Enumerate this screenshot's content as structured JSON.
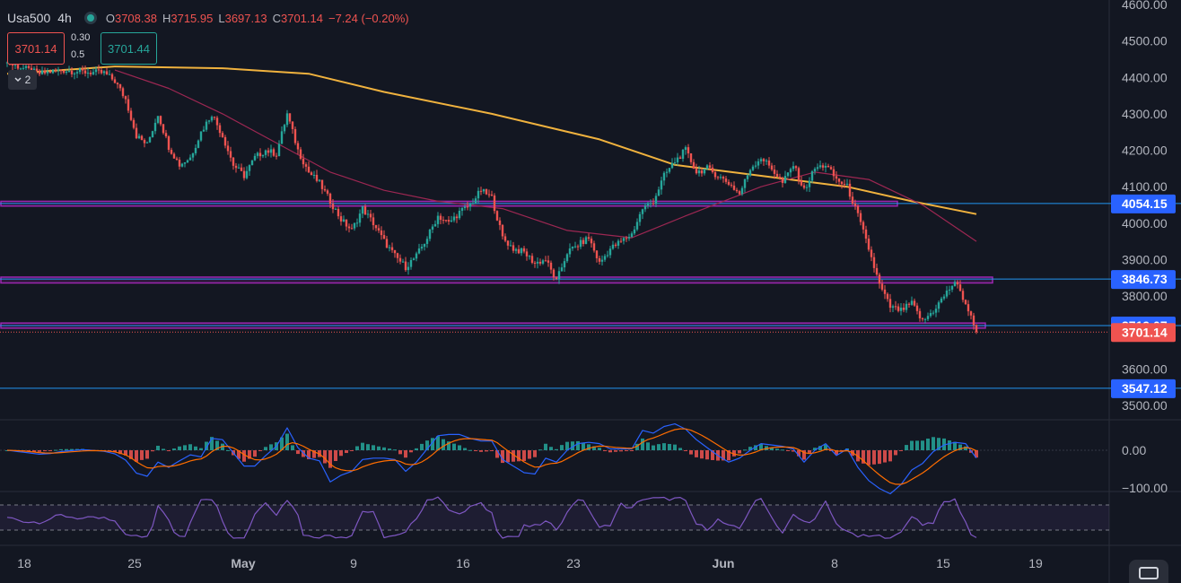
{
  "legend": {
    "symbol": "Usa500",
    "timeframe": "4h",
    "o_key": "O",
    "o_val": "3708.38",
    "h_key": "H",
    "h_val": "3715.95",
    "l_key": "L",
    "l_val": "3697.13",
    "c_key": "C",
    "c_val": "3701.14",
    "change": "−7.24 (−0.20%)"
  },
  "trade_panel": {
    "sell_price": "3701.14",
    "buy_price": "3701.44",
    "spread_top": "0.30",
    "spread_bottom": "0.5",
    "lots_value": "2"
  },
  "colors": {
    "background": "#131722",
    "up": "#26a69a",
    "down": "#ef5350",
    "ma_slow": "#f0b23e",
    "ma_fast": "#9c2752",
    "level_line": "#2196f3",
    "zone": "#9c27b0",
    "macd_line": "#2962ff",
    "signal_line": "#ff6d00",
    "rsi_line": "#7e57c2"
  },
  "price_axis": {
    "ticks": [
      "4600.00",
      "4500.00",
      "4400.00",
      "4300.00",
      "4200.00",
      "4100.00",
      "4000.00",
      "3900.00",
      "3800.00",
      "3600.00",
      "3500.00"
    ],
    "tick_values": [
      4600,
      4500,
      4400,
      4300,
      4200,
      4100,
      4000,
      3900,
      3800,
      3600,
      3500
    ],
    "range": [
      3470,
      4610
    ]
  },
  "macd_axis": {
    "ticks": [
      "0.00",
      "−100.00"
    ],
    "tick_values": [
      0,
      -100
    ]
  },
  "time_axis": {
    "labels": [
      "18",
      "25",
      "May",
      "9",
      "16",
      "23",
      "Jun",
      "8",
      "15",
      "19"
    ],
    "bold": [
      false,
      false,
      true,
      false,
      false,
      false,
      true,
      false,
      false,
      false
    ]
  },
  "chart_data": {
    "type": "candlestick",
    "symbol": "Usa500",
    "timeframe": "4h",
    "ylim": [
      3470,
      4610
    ],
    "x_labels": [
      "18",
      "25",
      "May",
      "9",
      "16",
      "23",
      "Jun",
      "8",
      "15",
      "19"
    ],
    "last_price": 3701.14,
    "price_tags": [
      {
        "label": "4054.15",
        "value": 4054.15,
        "type": "horizontal_line"
      },
      {
        "label": "3846.73",
        "value": 3846.73,
        "type": "horizontal_line"
      },
      {
        "label": "3719.07",
        "value": 3719.07,
        "type": "horizontal_line"
      },
      {
        "label": "3701.14",
        "value": 3701.14,
        "type": "last_price"
      },
      {
        "label": "3547.12",
        "value": 3547.12,
        "type": "horizontal_line"
      }
    ],
    "zones": [
      {
        "from": 4047,
        "to": 4060
      },
      {
        "from": 3836,
        "to": 3852
      },
      {
        "from": 3712,
        "to": 3726
      }
    ],
    "close_path": [
      {
        "x": 0,
        "c": 4440
      },
      {
        "x": 3,
        "c": 4410
      },
      {
        "x": 5,
        "c": 4420
      },
      {
        "x": 7,
        "c": 4415
      },
      {
        "x": 9,
        "c": 4412
      },
      {
        "x": 10,
        "c": 4390
      },
      {
        "x": 11,
        "c": 4340
      },
      {
        "x": 12,
        "c": 4240
      },
      {
        "x": 13,
        "c": 4215
      },
      {
        "x": 14,
        "c": 4300
      },
      {
        "x": 15,
        "c": 4210
      },
      {
        "x": 16,
        "c": 4160
      },
      {
        "x": 17,
        "c": 4180
      },
      {
        "x": 18,
        "c": 4250
      },
      {
        "x": 19,
        "c": 4300
      },
      {
        "x": 20,
        "c": 4240
      },
      {
        "x": 21,
        "c": 4160
      },
      {
        "x": 22,
        "c": 4130
      },
      {
        "x": 23,
        "c": 4180
      },
      {
        "x": 24,
        "c": 4200
      },
      {
        "x": 25,
        "c": 4190
      },
      {
        "x": 26,
        "c": 4300
      },
      {
        "x": 27,
        "c": 4200
      },
      {
        "x": 28,
        "c": 4140
      },
      {
        "x": 29,
        "c": 4110
      },
      {
        "x": 30,
        "c": 4060
      },
      {
        "x": 31,
        "c": 4010
      },
      {
        "x": 32,
        "c": 3980
      },
      {
        "x": 33,
        "c": 4040
      },
      {
        "x": 34,
        "c": 4000
      },
      {
        "x": 35,
        "c": 3950
      },
      {
        "x": 36,
        "c": 3910
      },
      {
        "x": 37,
        "c": 3880
      },
      {
        "x": 38,
        "c": 3910
      },
      {
        "x": 39,
        "c": 3960
      },
      {
        "x": 40,
        "c": 4020
      },
      {
        "x": 41,
        "c": 4000
      },
      {
        "x": 42,
        "c": 4030
      },
      {
        "x": 43,
        "c": 4050
      },
      {
        "x": 44,
        "c": 4090
      },
      {
        "x": 45,
        "c": 4070
      },
      {
        "x": 46,
        "c": 3960
      },
      {
        "x": 47,
        "c": 3930
      },
      {
        "x": 48,
        "c": 3920
      },
      {
        "x": 49,
        "c": 3890
      },
      {
        "x": 50,
        "c": 3900
      },
      {
        "x": 51,
        "c": 3840
      },
      {
        "x": 52,
        "c": 3920
      },
      {
        "x": 53,
        "c": 3940
      },
      {
        "x": 54,
        "c": 3960
      },
      {
        "x": 55,
        "c": 3890
      },
      {
        "x": 56,
        "c": 3930
      },
      {
        "x": 57,
        "c": 3950
      },
      {
        "x": 58,
        "c": 3970
      },
      {
        "x": 59,
        "c": 4040
      },
      {
        "x": 60,
        "c": 4060
      },
      {
        "x": 61,
        "c": 4130
      },
      {
        "x": 62,
        "c": 4170
      },
      {
        "x": 63,
        "c": 4200
      },
      {
        "x": 64,
        "c": 4140
      },
      {
        "x": 65,
        "c": 4150
      },
      {
        "x": 66,
        "c": 4130
      },
      {
        "x": 67,
        "c": 4110
      },
      {
        "x": 68,
        "c": 4080
      },
      {
        "x": 69,
        "c": 4150
      },
      {
        "x": 70,
        "c": 4180
      },
      {
        "x": 71,
        "c": 4150
      },
      {
        "x": 72,
        "c": 4110
      },
      {
        "x": 73,
        "c": 4160
      },
      {
        "x": 74,
        "c": 4090
      },
      {
        "x": 75,
        "c": 4150
      },
      {
        "x": 76,
        "c": 4160
      },
      {
        "x": 77,
        "c": 4120
      },
      {
        "x": 78,
        "c": 4100
      },
      {
        "x": 79,
        "c": 4020
      },
      {
        "x": 80,
        "c": 3930
      },
      {
        "x": 81,
        "c": 3830
      },
      {
        "x": 82,
        "c": 3770
      },
      {
        "x": 83,
        "c": 3760
      },
      {
        "x": 84,
        "c": 3780
      },
      {
        "x": 85,
        "c": 3730
      },
      {
        "x": 86,
        "c": 3760
      },
      {
        "x": 87,
        "c": 3800
      },
      {
        "x": 88,
        "c": 3840
      },
      {
        "x": 89,
        "c": 3780
      },
      {
        "x": 90,
        "c": 3701
      }
    ],
    "ma_slow": [
      {
        "x": 0,
        "v": 4410
      },
      {
        "x": 10,
        "v": 4430
      },
      {
        "x": 20,
        "v": 4425
      },
      {
        "x": 28,
        "v": 4410
      },
      {
        "x": 35,
        "v": 4360
      },
      {
        "x": 45,
        "v": 4300
      },
      {
        "x": 55,
        "v": 4230
      },
      {
        "x": 62,
        "v": 4160
      },
      {
        "x": 70,
        "v": 4130
      },
      {
        "x": 78,
        "v": 4100
      },
      {
        "x": 84,
        "v": 4060
      },
      {
        "x": 90,
        "v": 4025
      }
    ],
    "ma_fast": [
      {
        "x": 10,
        "v": 4420
      },
      {
        "x": 15,
        "v": 4370
      },
      {
        "x": 20,
        "v": 4300
      },
      {
        "x": 25,
        "v": 4220
      },
      {
        "x": 30,
        "v": 4140
      },
      {
        "x": 35,
        "v": 4090
      },
      {
        "x": 40,
        "v": 4060
      },
      {
        "x": 46,
        "v": 4040
      },
      {
        "x": 52,
        "v": 3980
      },
      {
        "x": 58,
        "v": 3960
      },
      {
        "x": 63,
        "v": 4020
      },
      {
        "x": 70,
        "v": 4100
      },
      {
        "x": 75,
        "v": 4140
      },
      {
        "x": 80,
        "v": 4120
      },
      {
        "x": 85,
        "v": 4050
      },
      {
        "x": 90,
        "v": 3950
      }
    ]
  }
}
